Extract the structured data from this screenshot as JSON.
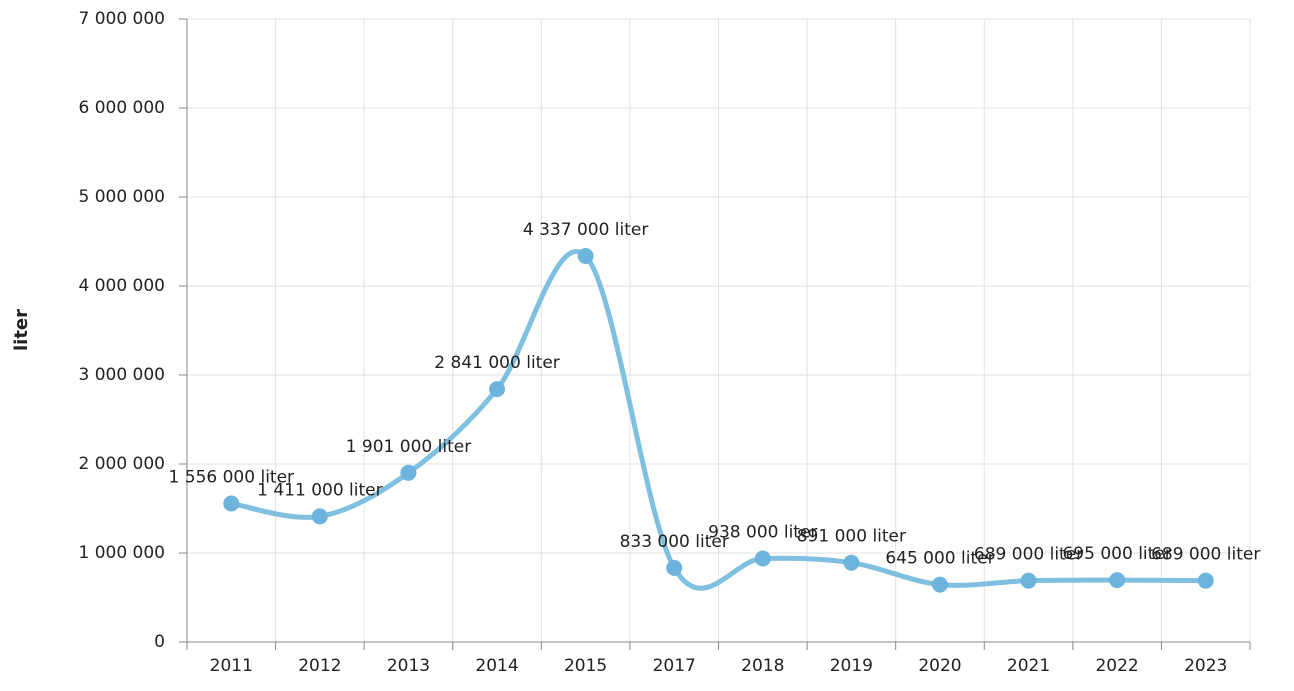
{
  "chart_data": {
    "type": "line",
    "y_label": "liter",
    "categories": [
      "2011",
      "2012",
      "2013",
      "2014",
      "2015",
      "2017",
      "2018",
      "2019",
      "2020",
      "2021",
      "2022",
      "2023"
    ],
    "series": [
      {
        "name": "liter",
        "color": "#7fbfe0",
        "values": [
          1556000,
          1411000,
          1901000,
          2841000,
          4337000,
          833000,
          938000,
          891000,
          645000,
          689000,
          695000,
          689000
        ],
        "value_labels": [
          "1 556 000 liter",
          "1 411 000 liter",
          "1 901 000 liter",
          "2 841 000 liter",
          "4 337 000 liter",
          "833 000 liter",
          "938 000 liter",
          "891 000 liter",
          "645 000 liter",
          "689 000 liter",
          "695 000 liter",
          "689 000 liter"
        ]
      }
    ],
    "ylim": [
      0,
      7000000
    ],
    "yticks": [
      {
        "value": 0,
        "label": "0"
      },
      {
        "value": 1000000,
        "label": "1 000 000"
      },
      {
        "value": 2000000,
        "label": "2 000 000"
      },
      {
        "value": 3000000,
        "label": "3 000 000"
      },
      {
        "value": 4000000,
        "label": "4 000 000"
      },
      {
        "value": 5000000,
        "label": "5 000 000"
      },
      {
        "value": 6000000,
        "label": "6 000 000"
      },
      {
        "value": 7000000,
        "label": "7 000 000"
      }
    ],
    "grid": true
  }
}
